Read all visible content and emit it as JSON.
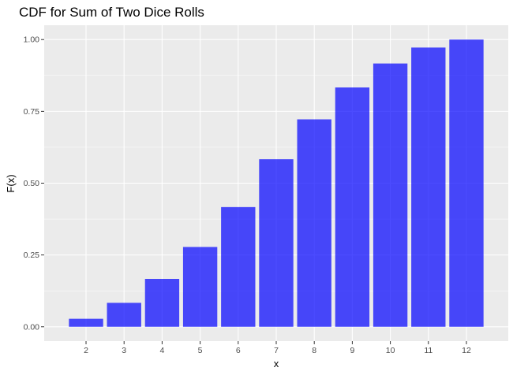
{
  "chart_data": {
    "type": "bar",
    "title": "CDF for Sum of Two Dice Rolls",
    "xlabel": "x",
    "ylabel": "F(x)",
    "categories": [
      "2",
      "3",
      "4",
      "5",
      "6",
      "7",
      "8",
      "9",
      "10",
      "11",
      "12"
    ],
    "values": [
      0.0278,
      0.0833,
      0.1667,
      0.2778,
      0.4167,
      0.5833,
      0.7222,
      0.8333,
      0.9167,
      0.9722,
      1.0
    ],
    "ylim": [
      -0.05,
      1.05
    ],
    "yticks": [
      0,
      0.25,
      0.5,
      0.75,
      1.0
    ],
    "ytick_labels": [
      "0.00",
      "0.25",
      "0.50",
      "0.75",
      "1.00"
    ],
    "grid": true,
    "colors": {
      "bar": "#0000ff",
      "panel": "#ebebeb",
      "grid": "#ffffff"
    },
    "bar_opacity": 0.7
  }
}
